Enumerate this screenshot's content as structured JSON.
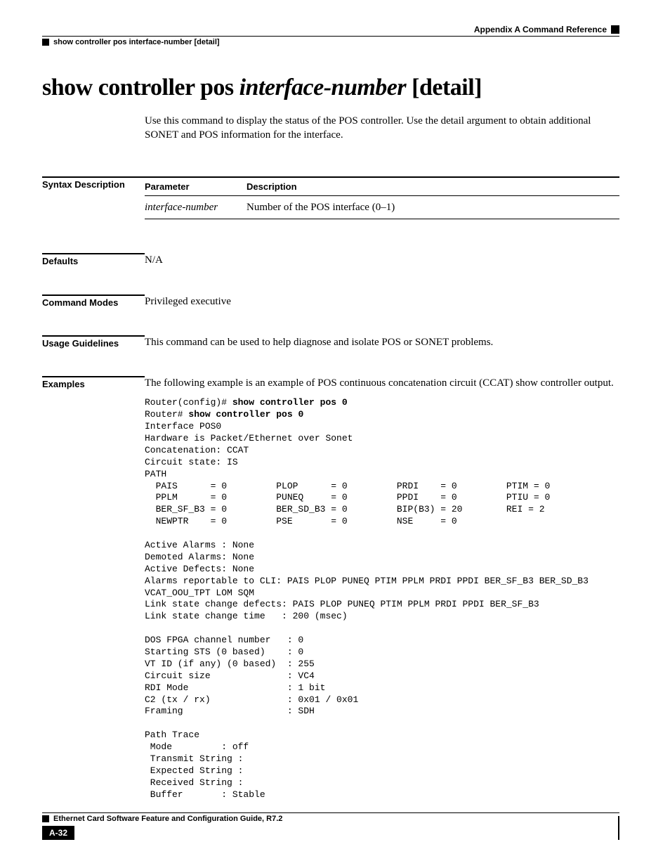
{
  "header": {
    "appendix": "Appendix A      Command Reference",
    "command": "show controller pos interface-number [detail]"
  },
  "title": {
    "prefix": "show controller pos ",
    "italic": "interface-number",
    "suffix": " [detail]"
  },
  "intro": "Use this command to display the status of the POS controller. Use the detail argument to obtain additional SONET and POS information for the interface.",
  "sections": {
    "syntax_label": "Syntax Description",
    "syntax_table": {
      "col1": "Parameter",
      "col2": "Description",
      "param": "interface-number",
      "desc": "Number of the POS interface (0–1)"
    },
    "defaults_label": "Defaults",
    "defaults_body": "N/A",
    "modes_label": "Command Modes",
    "modes_body": "Privileged executive",
    "usage_label": "Usage Guidelines",
    "usage_body": "This command can be used to help diagnose and isolate POS or SONET problems.",
    "examples_label": "Examples",
    "examples_intro": "The following example is an example of POS continuous concatenation circuit (CCAT) show controller output.",
    "code_prefix1": "Router(config)# ",
    "code_bold1": "show controller pos 0",
    "code_prefix2": "Router# ",
    "code_bold2": "show controller pos 0",
    "code_body": "Interface POS0\nHardware is Packet/Ethernet over Sonet \nConcatenation: CCAT \nCircuit state: IS \nPATH\n  PAIS      = 0         PLOP      = 0         PRDI    = 0         PTIM = 0\n  PPLM      = 0         PUNEQ     = 0         PPDI    = 0         PTIU = 0\n  BER_SF_B3 = 0         BER_SD_B3 = 0         BIP(B3) = 20        REI = 2\n  NEWPTR    = 0         PSE       = 0         NSE     = 0\n\nActive Alarms : None\nDemoted Alarms: None\nActive Defects: None\nAlarms reportable to CLI: PAIS PLOP PUNEQ PTIM PPLM PRDI PPDI BER_SF_B3 BER_SD_B3 \nVCAT_OOU_TPT LOM SQM \nLink state change defects: PAIS PLOP PUNEQ PTIM PPLM PRDI PPDI BER_SF_B3 \nLink state change time   : 200 (msec)\n\nDOS FPGA channel number   : 0\nStarting STS (0 based)    : 0\nVT ID (if any) (0 based)  : 255\nCircuit size              : VC4\nRDI Mode                  : 1 bit\nC2 (tx / rx)              : 0x01 / 0x01\nFraming                   : SDH\n\nPath Trace\n Mode         : off \n Transmit String : \n Expected String : \n Received String : \n Buffer       : Stable"
  },
  "footer": {
    "doc_title": "Ethernet Card Software Feature and Configuration Guide, R7.2",
    "page_num": "A-32"
  }
}
